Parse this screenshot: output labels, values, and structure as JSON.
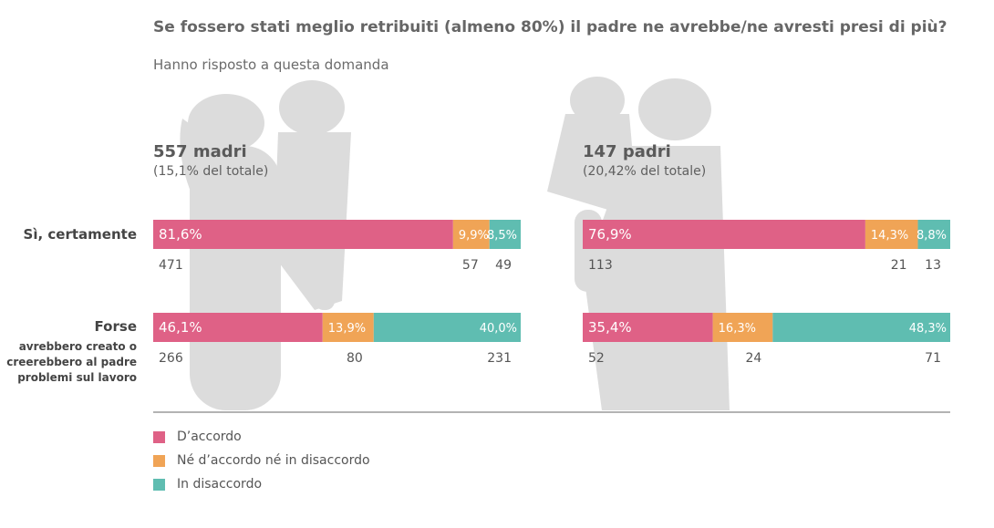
{
  "title": "Se fossero stati meglio retribuiti (almeno 80%) il padre ne avrebbe/ne avresti presi di più?",
  "subtitle": "Hanno risposto a questa domanda",
  "colors": {
    "agree": "#df6186",
    "neutral": "#f0a456",
    "disagree": "#5fbdb1",
    "silhouette": "#dcdcdc"
  },
  "groups": [
    {
      "title": "557 madri",
      "subtitle": "(15,1% del totale)"
    },
    {
      "title": "147 padri",
      "subtitle": "(20,42% del totale)"
    }
  ],
  "rows": [
    {
      "label": "Sì, certamente",
      "sublabel": ""
    },
    {
      "label": "Forse",
      "sublabel": "avrebbero creato o creerebbero al padre problemi sul lavoro"
    }
  ],
  "legend": [
    "D’accordo",
    "Né d’accordo né in disaccordo",
    "In disaccordo"
  ],
  "chart_data": {
    "type": "bar",
    "orientation": "horizontal",
    "stacked": true,
    "groups": [
      "557 madri",
      "147 padri"
    ],
    "categories": [
      "Sì, certamente",
      "Forse"
    ],
    "series": [
      {
        "name": "D’accordo",
        "values": [
          [
            81.6,
            46.1
          ],
          [
            76.9,
            35.4
          ]
        ],
        "labels": [
          [
            "81,6%",
            "46,1%"
          ],
          [
            "76,9%",
            "35,4%"
          ]
        ],
        "counts": [
          [
            "471",
            "266"
          ],
          [
            "113",
            "52"
          ]
        ]
      },
      {
        "name": "Né d’accordo né in disaccordo",
        "values": [
          [
            9.9,
            13.9
          ],
          [
            14.3,
            16.3
          ]
        ],
        "labels": [
          [
            "9,9%",
            "13,9%"
          ],
          [
            "14,3%",
            "16,3%"
          ]
        ],
        "counts": [
          [
            "57",
            "80"
          ],
          [
            "21",
            "24"
          ]
        ]
      },
      {
        "name": "In disaccordo",
        "values": [
          [
            8.5,
            40.0
          ],
          [
            8.8,
            48.3
          ]
        ],
        "labels": [
          [
            "8,5%",
            "40,0%"
          ],
          [
            "8,8%",
            "48,3%"
          ]
        ],
        "counts": [
          [
            "49",
            "231"
          ],
          [
            "13",
            "71"
          ]
        ]
      }
    ]
  }
}
